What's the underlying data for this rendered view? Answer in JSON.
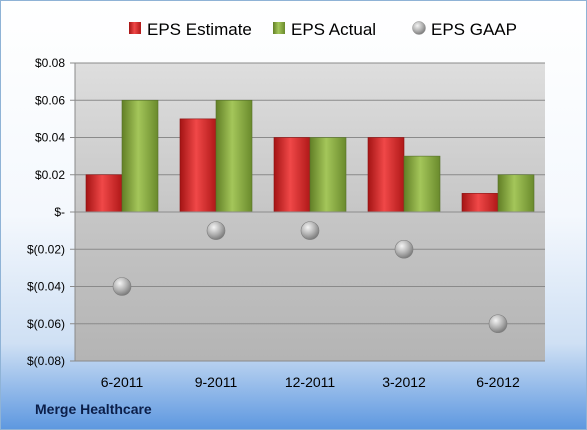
{
  "company": "Merge Healthcare",
  "chart_data": {
    "type": "bar",
    "categories": [
      "6-2011",
      "9-2011",
      "12-2011",
      "3-2012",
      "6-2012"
    ],
    "series": [
      {
        "name": "EPS Estimate",
        "kind": "bar",
        "color": "#d42a2a",
        "values": [
          0.02,
          0.05,
          0.04,
          0.04,
          0.01
        ]
      },
      {
        "name": "EPS Actual",
        "kind": "bar",
        "color": "#7fa33a",
        "values": [
          0.06,
          0.06,
          0.04,
          0.03,
          0.02
        ]
      },
      {
        "name": "EPS GAAP",
        "kind": "marker",
        "color": "#a8a8a8",
        "values": [
          -0.04,
          -0.01,
          -0.01,
          -0.02,
          -0.06
        ]
      }
    ],
    "ylim": [
      -0.08,
      0.08
    ],
    "yticks": [
      {
        "value": 0.08,
        "label": "$0.08"
      },
      {
        "value": 0.06,
        "label": "$0.06"
      },
      {
        "value": 0.04,
        "label": "$0.04"
      },
      {
        "value": 0.02,
        "label": "$0.02"
      },
      {
        "value": 0,
        "label": "$-"
      },
      {
        "value": -0.02,
        "label": "$(0.02)"
      },
      {
        "value": -0.04,
        "label": "$(0.04)"
      },
      {
        "value": -0.06,
        "label": "$(0.06)"
      },
      {
        "value": -0.08,
        "label": "$(0.08)"
      }
    ],
    "grid": true,
    "legend": "top"
  }
}
